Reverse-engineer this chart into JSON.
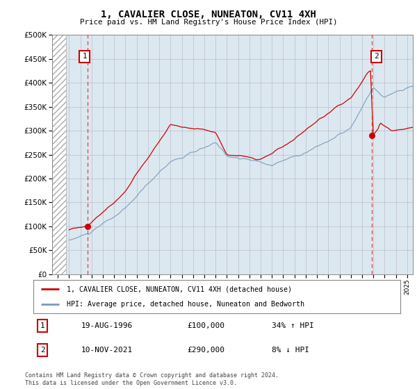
{
  "title": "1, CAVALIER CLOSE, NUNEATON, CV11 4XH",
  "subtitle": "Price paid vs. HM Land Registry's House Price Index (HPI)",
  "ylim": [
    0,
    500000
  ],
  "yticks": [
    0,
    50000,
    100000,
    150000,
    200000,
    250000,
    300000,
    350000,
    400000,
    450000,
    500000
  ],
  "xlim_start": 1993.5,
  "xlim_end": 2025.5,
  "transaction1_date": 1996.63,
  "transaction1_price": 100000,
  "transaction1_label": "1",
  "transaction2_date": 2021.87,
  "transaction2_price": 290000,
  "transaction2_label": "2",
  "red_line_color": "#cc0000",
  "blue_line_color": "#7799bb",
  "grid_color": "#cccccc",
  "plot_bg": "#dce8f0",
  "legend_line1": "1, CAVALIER CLOSE, NUNEATON, CV11 4XH (detached house)",
  "legend_line2": "HPI: Average price, detached house, Nuneaton and Bedworth",
  "table_row1_label": "1",
  "table_row1_date": "19-AUG-1996",
  "table_row1_price": "£100,000",
  "table_row1_hpi": "34% ↑ HPI",
  "table_row2_label": "2",
  "table_row2_date": "10-NOV-2021",
  "table_row2_price": "£290,000",
  "table_row2_hpi": "8% ↓ HPI",
  "footer": "Contains HM Land Registry data © Crown copyright and database right 2024.\nThis data is licensed under the Open Government Licence v3.0."
}
